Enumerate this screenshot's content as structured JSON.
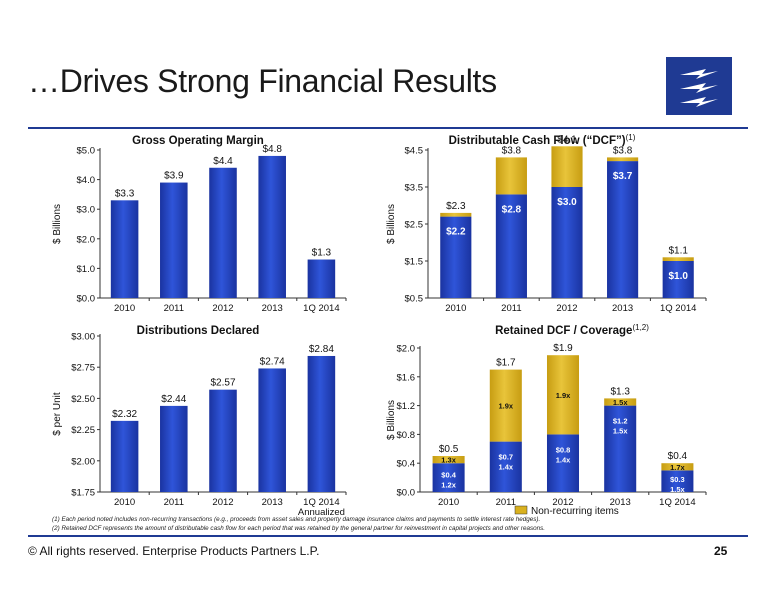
{
  "page": {
    "title": "…Drives Strong Financial Results",
    "footer": "©  All rights reserved. Enterprise Products Partners L.P.",
    "page_number": "25",
    "notes": [
      "(1) Each period noted includes non-recurring transactions (e.g., proceeds from asset sales and property damage insurance claims and payments to settle interest rate hedges).",
      "(2) Retained DCF represents the amount of distributable cash flow for each period that was retained by the general partner for reinvestment in capital projects and other reasons."
    ],
    "colors": {
      "brand": "#1f3a93",
      "bar_blue": "#1f3fb8",
      "gold": "#d9b11f"
    }
  },
  "chart_data": [
    {
      "id": "gom",
      "type": "bar",
      "title": "Gross Operating Margin",
      "ylabel": "$ Billions",
      "categories": [
        "2010",
        "2011",
        "2012",
        "2013",
        "1Q 2014"
      ],
      "values": [
        3.3,
        3.9,
        4.4,
        4.8,
        1.3
      ],
      "value_labels": [
        "$3.3",
        "$3.9",
        "$4.4",
        "$4.8",
        "$1.3"
      ],
      "ylim": [
        0,
        5
      ],
      "yticks": [
        0,
        1,
        2,
        3,
        4,
        5
      ],
      "ytick_labels": [
        "$0.0",
        "$1.0",
        "$2.0",
        "$3.0",
        "$4.0",
        "$5.0"
      ]
    },
    {
      "id": "dcf",
      "type": "bar",
      "stacked": true,
      "title": "Distributable Cash Flow (“DCF”)",
      "title_superscript": "(1)",
      "ylabel": "$ Billions",
      "categories": [
        "2010",
        "2011",
        "2012",
        "2013",
        "1Q 2014"
      ],
      "series": [
        {
          "values": [
            2.2,
            2.8,
            3.0,
            3.7,
            1.0
          ],
          "labels": [
            "$2.2",
            "$2.8",
            "$3.0",
            "$3.7",
            "$1.0"
          ]
        },
        {
          "values": [
            0.1,
            1.0,
            1.1,
            0.1,
            0.1
          ]
        }
      ],
      "total_labels": [
        "$2.3",
        "$3.8",
        "$4.1",
        "$3.8",
        "$1.1"
      ],
      "ylim": [
        0.5,
        4.5
      ],
      "yticks": [
        0.5,
        1.5,
        2.5,
        3.5,
        4.5
      ],
      "ytick_labels": [
        "$0.5",
        "$1.5",
        "$2.5",
        "$3.5",
        "$4.5"
      ]
    },
    {
      "id": "dist",
      "type": "bar",
      "title": "Distributions Declared",
      "ylabel": "$ per Unit",
      "categories": [
        "2010",
        "2011",
        "2012",
        "2013",
        "1Q 2014"
      ],
      "category_note": "Annualized",
      "values": [
        2.32,
        2.44,
        2.57,
        2.74,
        2.84
      ],
      "value_labels": [
        "$2.32",
        "$2.44",
        "$2.57",
        "$2.74",
        "$2.84"
      ],
      "ylim": [
        1.75,
        3.0
      ],
      "yticks": [
        1.75,
        2.0,
        2.25,
        2.5,
        2.75,
        3.0
      ],
      "ytick_labels": [
        "$1.75",
        "$2.00",
        "$2.25",
        "$2.50",
        "$2.75",
        "$3.00"
      ]
    },
    {
      "id": "ret",
      "type": "bar",
      "stacked": true,
      "title": "Retained DCF / Coverage",
      "title_superscript": "(1,2)",
      "ylabel": "$ Billions",
      "categories": [
        "2010",
        "2011",
        "2012",
        "2013",
        "1Q 2014"
      ],
      "series": [
        {
          "values": [
            0.4,
            0.7,
            0.8,
            1.2,
            0.3
          ],
          "labels": [
            "$0.4",
            "$0.7",
            "$0.8",
            "$1.2",
            "$0.3"
          ],
          "sublabels": [
            "1.2x",
            "1.4x",
            "1.4x",
            "1.5x",
            "1.5x"
          ]
        },
        {
          "name": "Non-recurring items",
          "values": [
            0.1,
            1.0,
            1.1,
            0.1,
            0.1
          ],
          "labels": [
            "1.3x",
            "1.9x",
            "1.9x",
            "1.5x",
            "1.7x"
          ]
        }
      ],
      "total_labels": [
        "$0.5",
        "$1.7",
        "$1.9",
        "$1.3",
        "$0.4"
      ],
      "ylim": [
        0,
        2
      ],
      "yticks": [
        0,
        0.4,
        0.8,
        1.2,
        1.6,
        2.0
      ],
      "ytick_labels": [
        "$0.0",
        "$0.4",
        "$0.8",
        "$1.2",
        "$1.6",
        "$2.0"
      ],
      "legend": "bottom"
    }
  ]
}
